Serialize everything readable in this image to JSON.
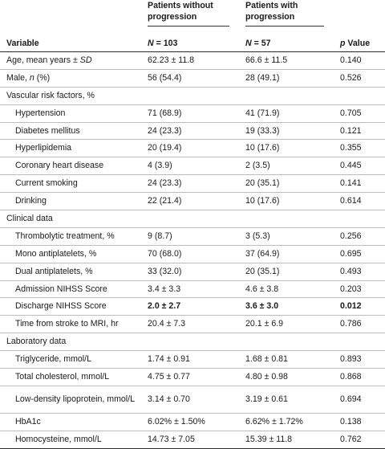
{
  "header": {
    "col_variable": "Variable",
    "col_group1_title": "Patients without progression",
    "col_group1_n_label": "N",
    "col_group1_n_value": " = 103",
    "col_group2_title": "Patients with progression",
    "col_group2_n_label": "N",
    "col_group2_n_value": " = 57",
    "col_p_italic": "p",
    "col_p_rest": " Value"
  },
  "rows": [
    {
      "label": "Age, mean years ± ",
      "label_italic": "SD",
      "g1": "62.23 ± 11.8",
      "g2": "66.6 ± 11.5",
      "p": "0.140"
    },
    {
      "label": "Male, ",
      "label_italic": "n",
      "label_tail": " (%)",
      "g1": "56 (54.4)",
      "g2": "28 (49.1)",
      "p": "0.526"
    },
    {
      "label": "Vascular risk factors, %",
      "g1": "",
      "g2": "",
      "p": ""
    },
    {
      "label": "Hypertension",
      "g1": "71 (68.9)",
      "g2": "41 (71.9)",
      "p": "0.705"
    },
    {
      "label": "Diabetes mellitus",
      "g1": "24 (23.3)",
      "g2": "19 (33.3)",
      "p": "0.121"
    },
    {
      "label": "Hyperlipidemia",
      "g1": "20 (19.4)",
      "g2": "10 (17.6)",
      "p": "0.355"
    },
    {
      "label": "Coronary heart disease",
      "g1": "4 (3.9)",
      "g2": "2 (3.5)",
      "p": "0.445"
    },
    {
      "label": "Current smoking",
      "g1": "24 (23.3)",
      "g2": "20 (35.1)",
      "p": "0.141"
    },
    {
      "label": "Drinking",
      "g1": "22 (21.4)",
      "g2": "10 (17.6)",
      "p": "0.614"
    },
    {
      "label": "Clinical data",
      "g1": "",
      "g2": "",
      "p": ""
    },
    {
      "label": "Thrombolytic treatment, %",
      "g1": "9 (8.7)",
      "g2": "3 (5.3)",
      "p": "0.256"
    },
    {
      "label": "Mono antiplatelets, %",
      "g1": "70 (68.0)",
      "g2": "37 (64.9)",
      "p": "0.695"
    },
    {
      "label": "Dual antiplatelets, %",
      "g1": "33 (32.0)",
      "g2": "20 (35.1)",
      "p": "0.493"
    },
    {
      "label": "Admission NIHSS Score",
      "g1": "3.4 ± 3.3",
      "g2": "4.6 ± 3.8",
      "p": "0.203"
    },
    {
      "label": "Discharge NIHSS Score",
      "g1": "2.0 ± 2.7",
      "g2": "3.6 ± 3.0",
      "p": "0.012"
    },
    {
      "label": "Time from stroke to MRI, hr",
      "g1": "20.4 ± 7.3",
      "g2": "20.1 ± 6.9",
      "p": "0.786"
    },
    {
      "label": "Laboratory data",
      "g1": "",
      "g2": "",
      "p": ""
    },
    {
      "label": "Triglyceride, mmol/L",
      "g1": "1.74 ± 0.91",
      "g2": "1.68 ± 0.81",
      "p": "0.893"
    },
    {
      "label": "Total cholesterol, mmol/L",
      "g1": "4.75 ± 0.77",
      "g2": "4.80 ± 0.98",
      "p": "0.868"
    },
    {
      "label": "Low-density lipoprotein, mmol/L",
      "g1": "3.14 ± 0.70",
      "g2": "3.19 ± 0.61",
      "p": "0.694"
    },
    {
      "label": "HbA1c",
      "g1": "6.02% ± 1.50%",
      "g2": "6.62% ± 1.72%",
      "p": "0.138"
    },
    {
      "label": "Homocysteine, mmol/L",
      "g1": "14.73 ± 7.05",
      "g2": "15.39 ± 11.8",
      "p": "0.762"
    }
  ]
}
